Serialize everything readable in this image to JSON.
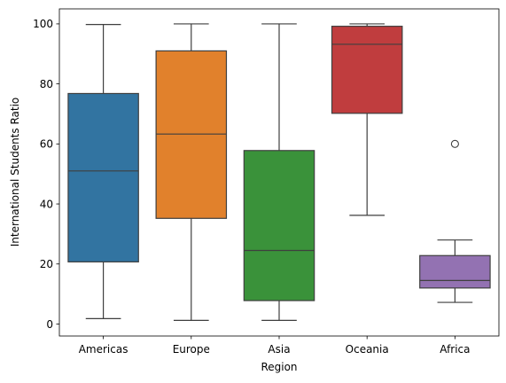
{
  "chart_data": {
    "type": "box",
    "xlabel": "Region",
    "ylabel": "International Students Ratio",
    "ylim": [
      -4,
      105
    ],
    "yticks": [
      0,
      20,
      40,
      60,
      80,
      100
    ],
    "grid": false,
    "categories": [
      "Americas",
      "Europe",
      "Asia",
      "Oceania",
      "Africa"
    ],
    "boxes": [
      {
        "category": "Americas",
        "color": "#3274a1",
        "whisker_low": 1.8,
        "q1": 20.7,
        "median": 51.0,
        "q3": 76.8,
        "whisker_high": 99.8,
        "outliers": []
      },
      {
        "category": "Europe",
        "color": "#e1812c",
        "whisker_low": 1.2,
        "q1": 35.2,
        "median": 63.3,
        "q3": 91.0,
        "whisker_high": 100.0,
        "outliers": []
      },
      {
        "category": "Asia",
        "color": "#3a923a",
        "whisker_low": 1.2,
        "q1": 7.8,
        "median": 24.5,
        "q3": 57.8,
        "whisker_high": 100.0,
        "outliers": []
      },
      {
        "category": "Oceania",
        "color": "#c03d3e",
        "whisker_low": 36.2,
        "q1": 70.2,
        "median": 93.2,
        "q3": 99.2,
        "whisker_high": 100.0,
        "outliers": []
      },
      {
        "category": "Africa",
        "color": "#9372b2",
        "whisker_low": 7.2,
        "q1": 12.0,
        "median": 14.5,
        "q3": 22.8,
        "whisker_high": 28.0,
        "outliers": [
          60.0
        ]
      }
    ]
  }
}
